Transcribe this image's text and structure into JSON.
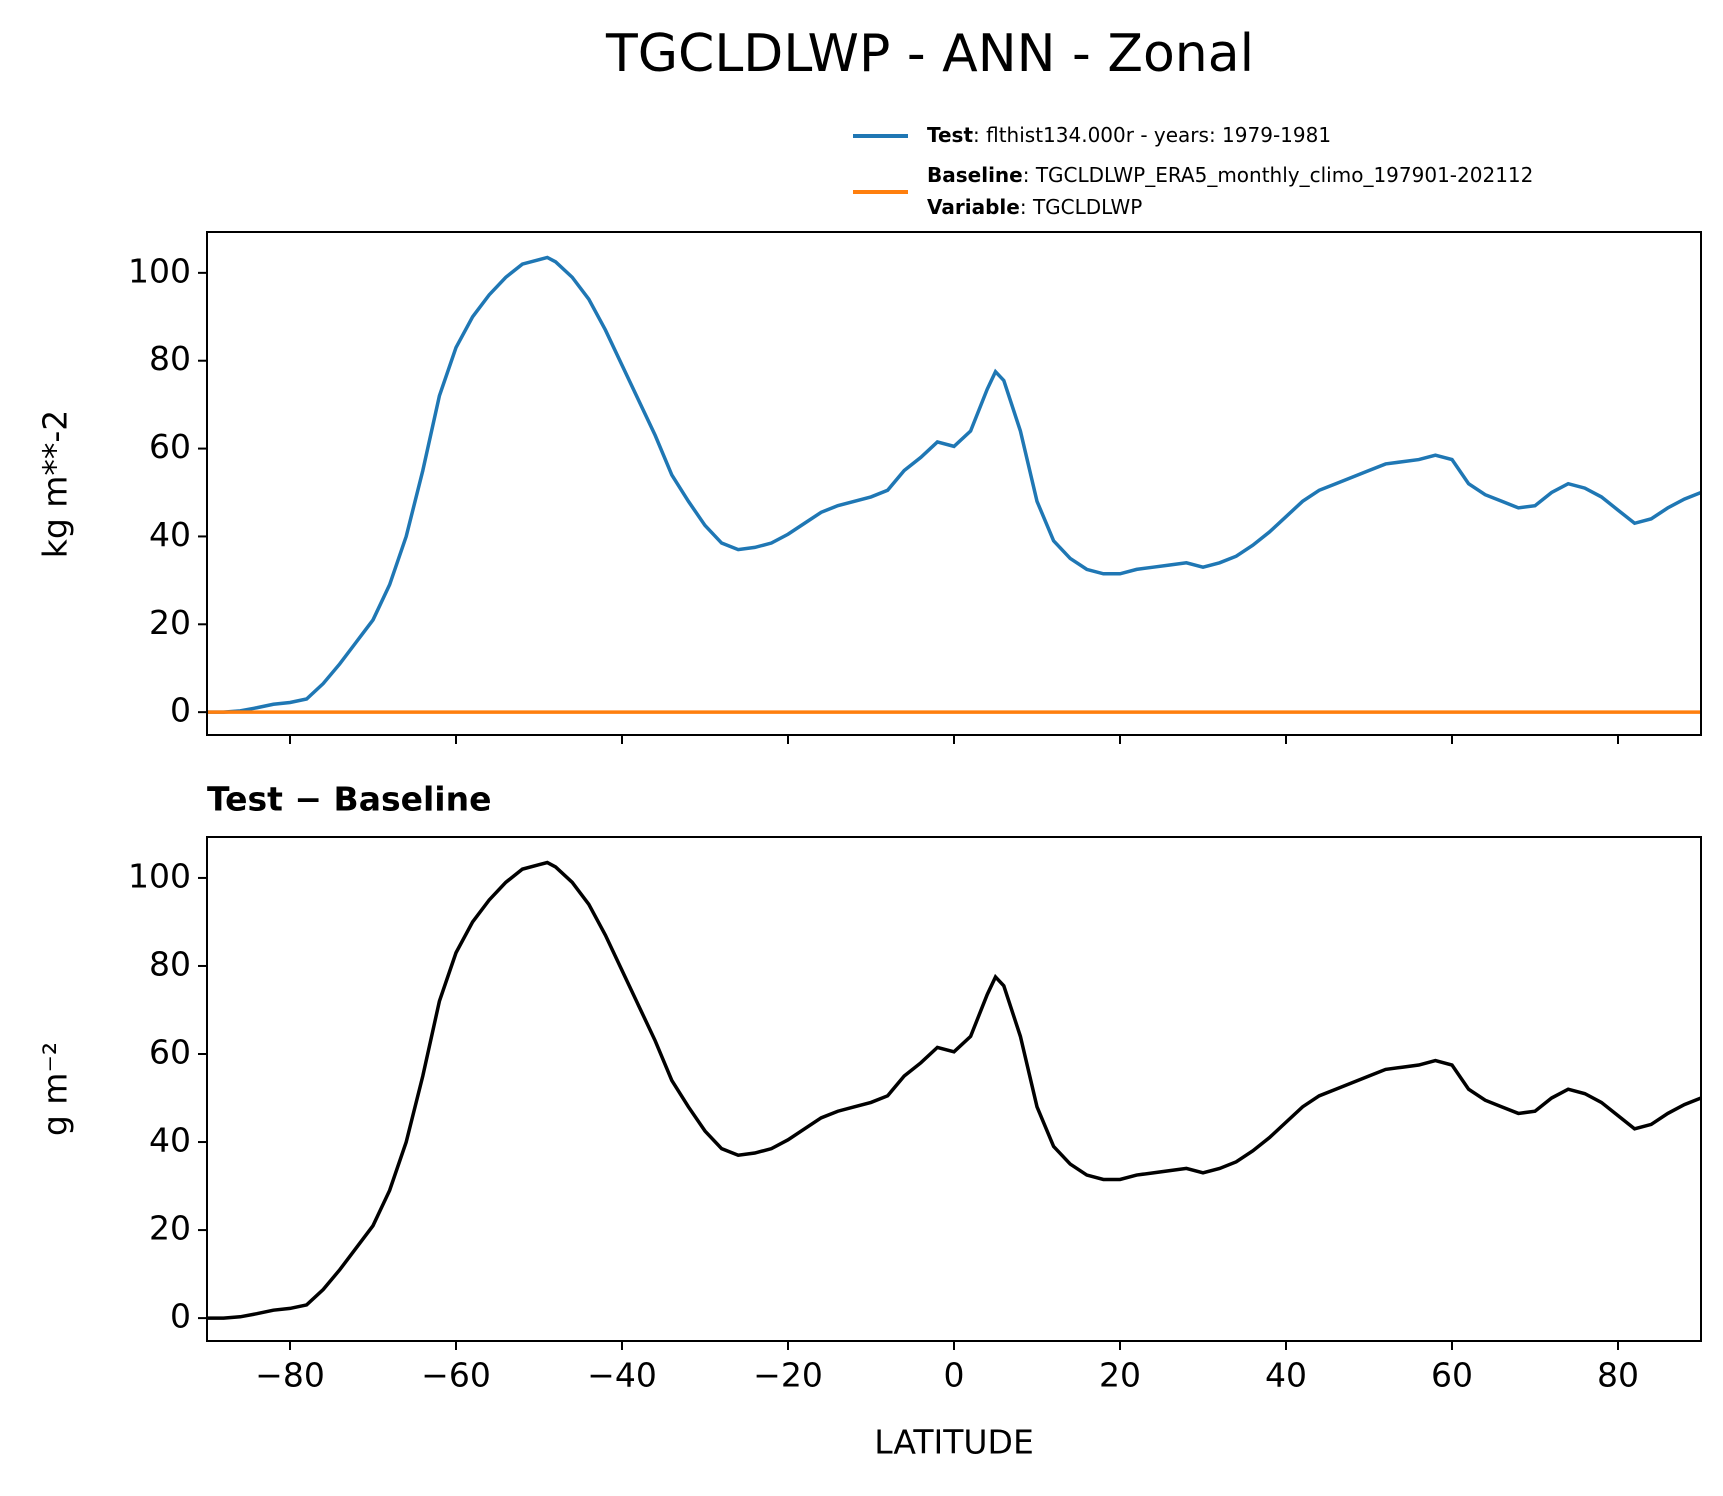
{
  "title": "TGCLDLWP - ANN - Zonal",
  "chart_data": [
    {
      "type": "line",
      "x": [
        -90,
        -88,
        -86,
        -84,
        -82,
        -80,
        -78,
        -76,
        -74,
        -72,
        -70,
        -68,
        -66,
        -64,
        -62,
        -60,
        -58,
        -56,
        -54,
        -52,
        -50,
        -49,
        -48,
        -46,
        -44,
        -42,
        -40,
        -38,
        -36,
        -34,
        -32,
        -30,
        -28,
        -26,
        -24,
        -22,
        -20,
        -18,
        -16,
        -14,
        -12,
        -10,
        -8,
        -6,
        -4,
        -2,
        0,
        2,
        4,
        5,
        6,
        8,
        10,
        12,
        14,
        16,
        18,
        20,
        22,
        24,
        26,
        28,
        30,
        32,
        34,
        36,
        38,
        40,
        42,
        44,
        46,
        48,
        50,
        52,
        54,
        56,
        58,
        60,
        62,
        64,
        66,
        68,
        70,
        72,
        74,
        76,
        78,
        80,
        82,
        84,
        86,
        88,
        90
      ],
      "series": [
        {
          "name": "Test",
          "detail": ": flthist134.000r - years: 1979-1981",
          "color": "#1f77b4",
          "values": [
            0,
            0,
            0.3,
            1,
            1.8,
            2.2,
            3,
            6.5,
            11,
            16,
            21,
            29,
            40,
            55,
            72,
            83,
            90,
            95,
            99,
            102,
            103,
            103.5,
            102.5,
            99,
            94,
            87,
            79,
            71,
            63,
            54,
            48,
            42.5,
            38.5,
            37,
            37.5,
            38.5,
            40.5,
            43,
            45.5,
            47,
            48,
            49,
            50.5,
            55,
            58,
            61.5,
            60.5,
            64,
            73.5,
            77.5,
            75.5,
            64,
            48,
            39,
            35,
            32.5,
            31.5,
            31.5,
            32.5,
            33,
            33.5,
            34,
            33,
            34,
            35.5,
            38,
            41,
            44.5,
            48,
            50.5,
            52,
            53.5,
            55,
            56.5,
            57,
            57.5,
            58.5,
            57.5,
            52,
            49.5,
            48,
            46.5,
            47,
            50,
            52,
            51,
            49,
            46,
            43,
            44,
            46.5,
            48.5,
            50
          ]
        },
        {
          "name": "Baseline",
          "detail": ": TGCLDLWP_ERA5_monthly_climo_197901-202112",
          "extra_name": "Variable",
          "extra_detail": ": TGCLDLWP",
          "color": "#ff7f0e",
          "x": [
            -90,
            90
          ],
          "values": [
            0,
            0
          ]
        }
      ],
      "ylabel": "kg m**-2",
      "xlim": [
        -90,
        90
      ],
      "ylim": [
        -5.2,
        109.3
      ],
      "xticks": [
        -80,
        -60,
        -40,
        -20,
        0,
        20,
        40,
        60,
        80
      ],
      "yticks": [
        0,
        20,
        40,
        60,
        80,
        100
      ]
    },
    {
      "type": "line",
      "subtitle": "Test − Baseline",
      "x": [
        -90,
        -88,
        -86,
        -84,
        -82,
        -80,
        -78,
        -76,
        -74,
        -72,
        -70,
        -68,
        -66,
        -64,
        -62,
        -60,
        -58,
        -56,
        -54,
        -52,
        -50,
        -49,
        -48,
        -46,
        -44,
        -42,
        -40,
        -38,
        -36,
        -34,
        -32,
        -30,
        -28,
        -26,
        -24,
        -22,
        -20,
        -18,
        -16,
        -14,
        -12,
        -10,
        -8,
        -6,
        -4,
        -2,
        0,
        2,
        4,
        5,
        6,
        8,
        10,
        12,
        14,
        16,
        18,
        20,
        22,
        24,
        26,
        28,
        30,
        32,
        34,
        36,
        38,
        40,
        42,
        44,
        46,
        48,
        50,
        52,
        54,
        56,
        58,
        60,
        62,
        64,
        66,
        68,
        70,
        72,
        74,
        76,
        78,
        80,
        82,
        84,
        86,
        88,
        90
      ],
      "series": [
        {
          "color": "#000000",
          "values": [
            0,
            0,
            0.3,
            1,
            1.8,
            2.2,
            3,
            6.5,
            11,
            16,
            21,
            29,
            40,
            55,
            72,
            83,
            90,
            95,
            99,
            102,
            103,
            103.5,
            102.5,
            99,
            94,
            87,
            79,
            71,
            63,
            54,
            48,
            42.5,
            38.5,
            37,
            37.5,
            38.5,
            40.5,
            43,
            45.5,
            47,
            48,
            49,
            50.5,
            55,
            58,
            61.5,
            60.5,
            64,
            73.5,
            77.5,
            75.5,
            64,
            48,
            39,
            35,
            32.5,
            31.5,
            31.5,
            32.5,
            33,
            33.5,
            34,
            33,
            34,
            35.5,
            38,
            41,
            44.5,
            48,
            50.5,
            52,
            53.5,
            55,
            56.5,
            57,
            57.5,
            58.5,
            57.5,
            52,
            49.5,
            48,
            46.5,
            47,
            50,
            52,
            51,
            49,
            46,
            43,
            44,
            46.5,
            48.5,
            50
          ]
        }
      ],
      "xlabel": "LATITUDE",
      "ylabel": "g m⁻²",
      "xlim": [
        -90,
        90
      ],
      "ylim": [
        -5.2,
        109.3
      ],
      "xticks": [
        {
          "value": -80,
          "label": "−80"
        },
        {
          "value": -60,
          "label": "−60"
        },
        {
          "value": -40,
          "label": "−40"
        },
        {
          "value": -20,
          "label": "−20"
        },
        0,
        20,
        40,
        60,
        80
      ],
      "yticks": [
        0,
        20,
        40,
        60,
        80,
        100
      ]
    }
  ]
}
